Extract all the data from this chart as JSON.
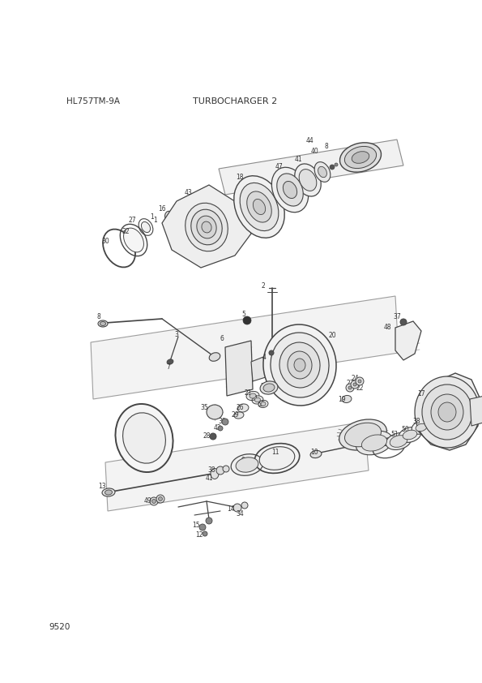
{
  "title": "TURBOCHARGER 2",
  "model": "HL757TM-9A",
  "part_number": "9520",
  "bg_color": "#ffffff",
  "line_color": "#444444",
  "text_color": "#333333",
  "fig_width": 5.95,
  "fig_height": 8.42,
  "dpi": 100
}
